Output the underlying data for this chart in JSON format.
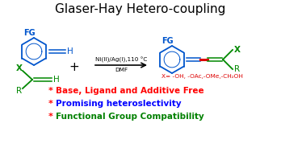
{
  "title": "Glaser-Hay Hetero-coupling",
  "title_fontsize": 11,
  "background_color": "#ffffff",
  "bullet_color": "red",
  "bullets": [
    {
      "text": "Base, Ligand and Additive Free",
      "color": "red"
    },
    {
      "text": "Promising heteroslectivity",
      "color": "blue"
    },
    {
      "text": "Functional Group Compatibility",
      "color": "green"
    }
  ],
  "arrow_label_top": "Ni(II)/Ag(I),110 °C",
  "arrow_label_bottom": "DMF",
  "x_label": "X= -OH, -OAc,-OMe,-CH₂OH",
  "blue_color": "#0055cc",
  "green_color": "#008800",
  "red_color": "#dd0000",
  "bond_red_color": "#dd0000"
}
